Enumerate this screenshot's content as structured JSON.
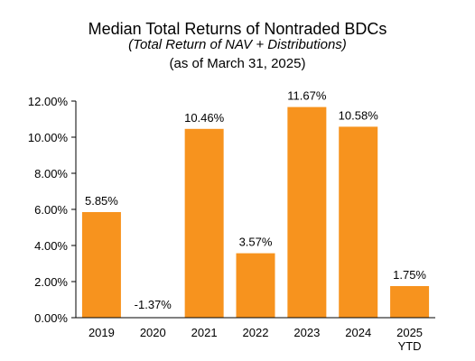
{
  "chart_data": {
    "type": "bar",
    "title": "Median Total Returns of Nontraded BDCs",
    "subtitle": "(Total Return of NAV + Distributions)",
    "subtitle2": "(as of March 31, 2025)",
    "categories": [
      "2019",
      "2020",
      "2021",
      "2022",
      "2023",
      "2024",
      "2025\nYTD"
    ],
    "values": [
      5.85,
      -1.37,
      10.46,
      3.57,
      11.67,
      10.58,
      1.75
    ],
    "data_labels": [
      "5.85%",
      "-1.37%",
      "10.46%",
      "3.57%",
      "11.67%",
      "10.58%",
      "1.75%"
    ],
    "y_ticks": [
      "0.00%",
      "2.00%",
      "4.00%",
      "6.00%",
      "8.00%",
      "10.00%",
      "12.00%"
    ],
    "ylim": [
      0,
      12
    ],
    "xlabel": "",
    "ylabel": "",
    "grid": false,
    "legend": "none",
    "bar_color": "#F7931E"
  }
}
